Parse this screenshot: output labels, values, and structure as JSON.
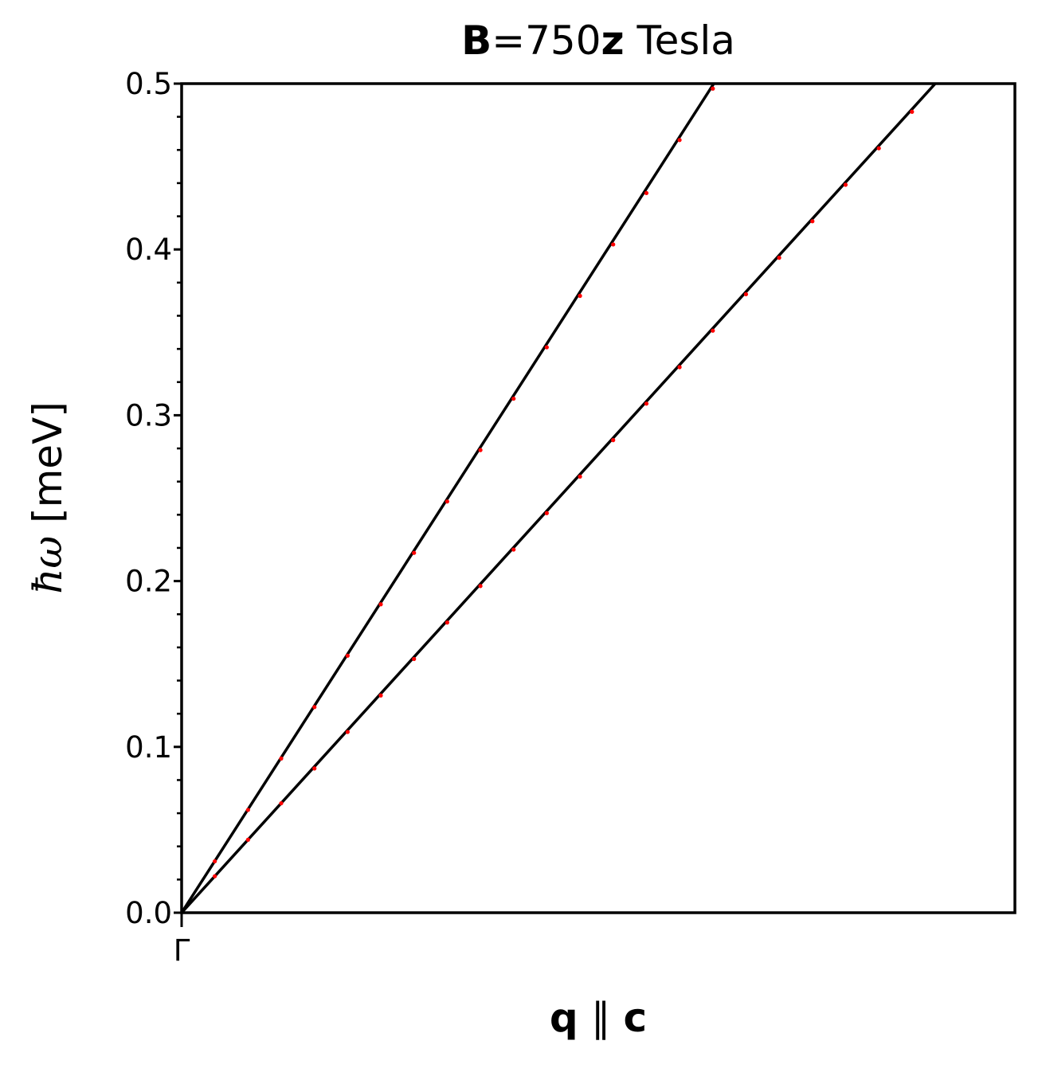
{
  "chart_data": {
    "type": "line",
    "title": {
      "bold_symbol": "B",
      "equals_value": "=750",
      "bold_axis": "z",
      "unit": " Tesla"
    },
    "xlabel": {
      "bold_q": "q",
      "parallel": " ∥ ",
      "bold_c": "c"
    },
    "ylabel": {
      "symbol": "ħω",
      "unit": " [meV]"
    },
    "x_tick_label": "Γ",
    "ylim": [
      0.0,
      0.5
    ],
    "xlim": [
      0.0,
      1.0
    ],
    "yticks": [
      "0.0",
      "0.1",
      "0.2",
      "0.3",
      "0.4",
      "0.5"
    ],
    "grid": false,
    "series": [
      {
        "style": "line",
        "color": "#000000",
        "x": [
          0.0,
          0.6386
        ],
        "y": [
          0.0,
          0.5
        ]
      },
      {
        "style": "line",
        "color": "#000000",
        "x": [
          0.0,
          0.9044
        ],
        "y": [
          0.0,
          0.5
        ]
      },
      {
        "style": "points",
        "color": "#ff0000",
        "x": [
          0.0398,
          0.0797,
          0.1195,
          0.1594,
          0.1992,
          0.239,
          0.2789,
          0.3187,
          0.3586,
          0.3984,
          0.4382,
          0.4781,
          0.5179,
          0.5578,
          0.5976,
          0.6375
        ],
        "y": [
          0.031,
          0.062,
          0.093,
          0.124,
          0.155,
          0.186,
          0.217,
          0.248,
          0.279,
          0.31,
          0.341,
          0.372,
          0.403,
          0.434,
          0.466,
          0.497
        ]
      },
      {
        "style": "points",
        "color": "#ff0000",
        "x": [
          0.0398,
          0.0797,
          0.1195,
          0.1594,
          0.1992,
          0.239,
          0.2789,
          0.3187,
          0.3586,
          0.3984,
          0.4382,
          0.4781,
          0.5179,
          0.5578,
          0.5976,
          0.6375,
          0.6773,
          0.7171,
          0.757,
          0.7968,
          0.8367,
          0.8765
        ],
        "y": [
          0.022,
          0.044,
          0.066,
          0.087,
          0.109,
          0.131,
          0.153,
          0.175,
          0.197,
          0.219,
          0.241,
          0.263,
          0.285,
          0.307,
          0.329,
          0.351,
          0.373,
          0.395,
          0.417,
          0.439,
          0.461,
          0.483
        ]
      }
    ]
  }
}
